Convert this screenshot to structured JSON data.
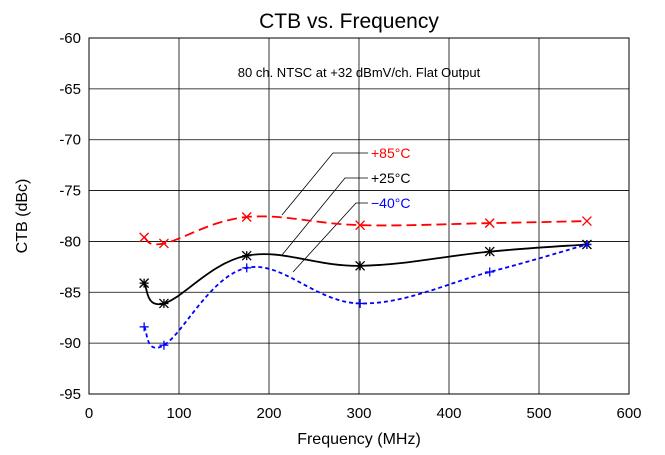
{
  "chart_data": {
    "type": "line",
    "title": "CTB vs. Frequency",
    "subtitle": "80 ch. NTSC at +32 dBmV/ch. Flat Output",
    "xlabel": "Frequency (MHz)",
    "ylabel": "CTB (dBc)",
    "xlim": [
      0,
      600
    ],
    "ylim": [
      -95,
      -60
    ],
    "xticks": [
      0,
      100,
      200,
      300,
      400,
      500,
      600
    ],
    "yticks": [
      -60,
      -65,
      -70,
      -75,
      -80,
      -85,
      -90,
      -95
    ],
    "grid": true,
    "legend": "inline-callouts",
    "series": [
      {
        "name": "+85°C",
        "color": "#ff0000",
        "dash": "dashed",
        "marker": "x",
        "x": [
          61.25,
          83.25,
          175.25,
          301.25,
          445.25,
          553.25
        ],
        "y": [
          -79.6,
          -80.2,
          -77.6,
          -78.4,
          -78.2,
          -78.0
        ]
      },
      {
        "name": "+25°C",
        "color": "#000000",
        "dash": "solid",
        "marker": "*",
        "x": [
          61.25,
          83.25,
          175.25,
          301.25,
          445.25,
          553.25
        ],
        "y": [
          -84.1,
          -86.1,
          -81.4,
          -82.4,
          -81.0,
          -80.3
        ]
      },
      {
        "name": "−40°C",
        "color": "#0000ff",
        "dash": "dotted",
        "marker": "+",
        "x": [
          61.25,
          83.25,
          175.25,
          301.25,
          445.25,
          553.25
        ],
        "y": [
          -88.4,
          -90.2,
          -82.6,
          -86.1,
          -83.0,
          -80.3
        ]
      }
    ]
  }
}
